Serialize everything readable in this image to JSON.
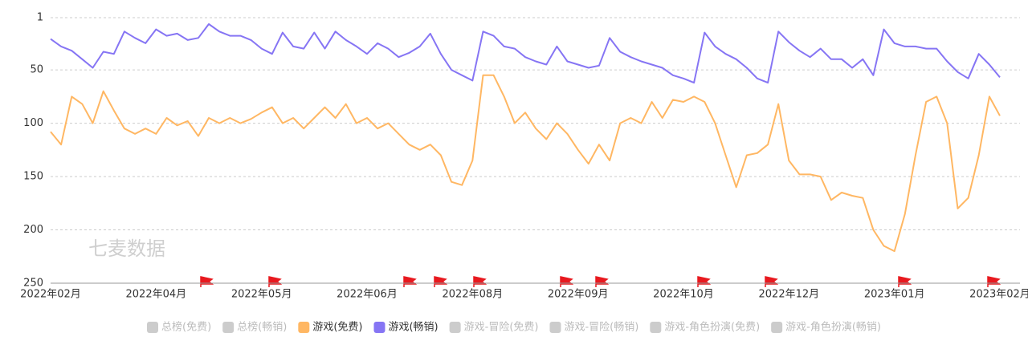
{
  "chart_data": {
    "type": "line",
    "watermark": "七麦数据",
    "categories": [
      "2022年02月",
      null,
      null,
      null,
      null,
      null,
      null,
      null,
      null,
      null,
      "2022年04月",
      null,
      null,
      null,
      null,
      null,
      null,
      null,
      null,
      null,
      "2022年05月",
      null,
      null,
      null,
      null,
      null,
      null,
      null,
      null,
      null,
      "2022年06月",
      null,
      null,
      null,
      null,
      null,
      null,
      null,
      null,
      null,
      "2022年08月",
      null,
      null,
      null,
      null,
      null,
      null,
      null,
      null,
      null,
      "2022年09月",
      null,
      null,
      null,
      null,
      null,
      null,
      null,
      null,
      null,
      "2022年10月",
      null,
      null,
      null,
      null,
      null,
      null,
      null,
      null,
      null,
      "2022年12月",
      null,
      null,
      null,
      null,
      null,
      null,
      null,
      null,
      null,
      "2023年01月",
      null,
      null,
      null,
      null,
      null,
      null,
      null,
      null,
      null,
      "2023年02月"
    ],
    "series": [
      {
        "name": "游戏(免费)",
        "color": "#ffb763",
        "values": [
          108,
          120,
          75,
          82,
          100,
          70,
          88,
          105,
          110,
          105,
          110,
          95,
          102,
          98,
          112,
          95,
          100,
          95,
          100,
          96,
          90,
          85,
          100,
          95,
          105,
          95,
          85,
          95,
          82,
          100,
          95,
          105,
          100,
          110,
          120,
          125,
          120,
          130,
          155,
          158,
          135,
          55,
          55,
          75,
          100,
          90,
          105,
          115,
          100,
          110,
          125,
          138,
          120,
          135,
          100,
          95,
          100,
          80,
          95,
          78,
          80,
          75,
          80,
          100,
          130,
          160,
          130,
          128,
          120,
          82,
          135,
          148,
          148,
          150,
          172,
          165,
          168,
          170,
          200,
          215,
          220,
          185,
          130,
          80,
          75,
          100,
          180,
          170,
          130,
          75,
          93
        ]
      },
      {
        "name": "游戏(畅销)",
        "color": "#8675f4",
        "values": [
          21,
          28,
          32,
          40,
          48,
          33,
          35,
          14,
          20,
          25,
          12,
          18,
          16,
          22,
          20,
          7,
          14,
          18,
          18,
          22,
          30,
          35,
          15,
          28,
          30,
          15,
          30,
          14,
          22,
          28,
          35,
          25,
          30,
          38,
          34,
          28,
          16,
          35,
          50,
          55,
          60,
          14,
          18,
          28,
          30,
          38,
          42,
          45,
          28,
          42,
          45,
          48,
          46,
          20,
          33,
          38,
          42,
          45,
          48,
          55,
          58,
          62,
          15,
          28,
          35,
          40,
          48,
          58,
          62,
          14,
          24,
          32,
          38,
          30,
          40,
          40,
          48,
          40,
          55,
          12,
          25,
          28,
          28,
          30,
          30,
          42,
          52,
          58,
          35,
          45,
          57
        ]
      }
    ],
    "legend": [
      {
        "name": "总榜(免费)",
        "color": "#cccccc"
      },
      {
        "name": "总榜(畅销)",
        "color": "#cccccc"
      },
      {
        "name": "游戏(免费)",
        "color": "#ffb763"
      },
      {
        "name": "游戏(畅销)",
        "color": "#8675f4"
      },
      {
        "name": "游戏-冒险(免费)",
        "color": "#cccccc"
      },
      {
        "name": "游戏-冒险(畅销)",
        "color": "#cccccc"
      },
      {
        "name": "游戏-角色扮演(免费)",
        "color": "#cccccc"
      },
      {
        "name": "游戏-角色扮演(畅销)",
        "color": "#cccccc"
      }
    ],
    "ylim": [
      1,
      250
    ],
    "y_inverted": true,
    "yticks": [
      1,
      50,
      100,
      150,
      200,
      250
    ],
    "grid": true
  }
}
